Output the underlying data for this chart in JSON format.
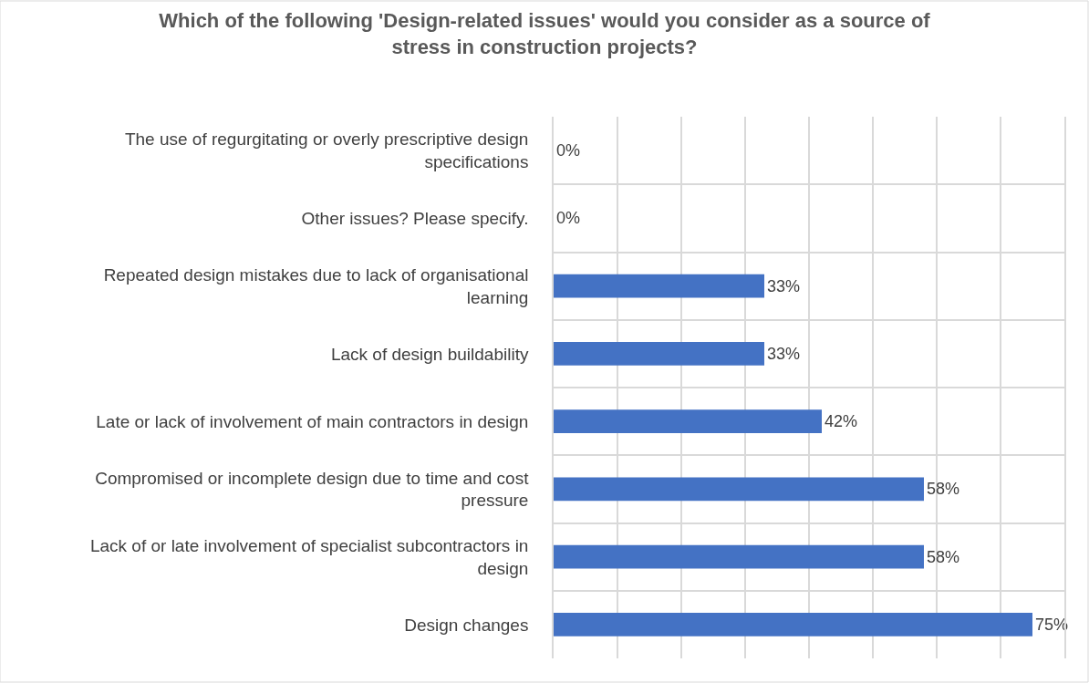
{
  "chart_data": {
    "type": "bar",
    "orientation": "horizontal",
    "title": "Which of the following 'Design-related issues' would you consider as a source of stress in construction projects?",
    "categories": [
      "The use of regurgitating or overly prescriptive design specifications",
      "Other issues? Please specify.",
      "Repeated design mistakes due to lack of organisational learning",
      "Lack of design buildability",
      "Late or lack of involvement of main contractors in design",
      "Compromised or incomplete design due to time and cost pressure",
      "Lack of or late involvement of specialist subcontractors in design",
      "Design changes"
    ],
    "values": [
      0,
      0,
      33,
      33,
      42,
      58,
      58,
      75
    ],
    "value_labels": [
      "0%",
      "0%",
      "33%",
      "33%",
      "42%",
      "58%",
      "58%",
      "75%"
    ],
    "color": "#4472c4",
    "xlim": [
      0,
      80
    ],
    "xticks": [
      {
        "value": 10,
        "label": null
      },
      {
        "value": 20,
        "label": null
      },
      {
        "value": 30,
        "label": null
      },
      {
        "value": 40,
        "label": null
      },
      {
        "value": 50,
        "label": null
      },
      {
        "value": 60,
        "label": null
      },
      {
        "value": 70,
        "label": null
      }
    ],
    "tick_labels": "y",
    "grid": true
  }
}
